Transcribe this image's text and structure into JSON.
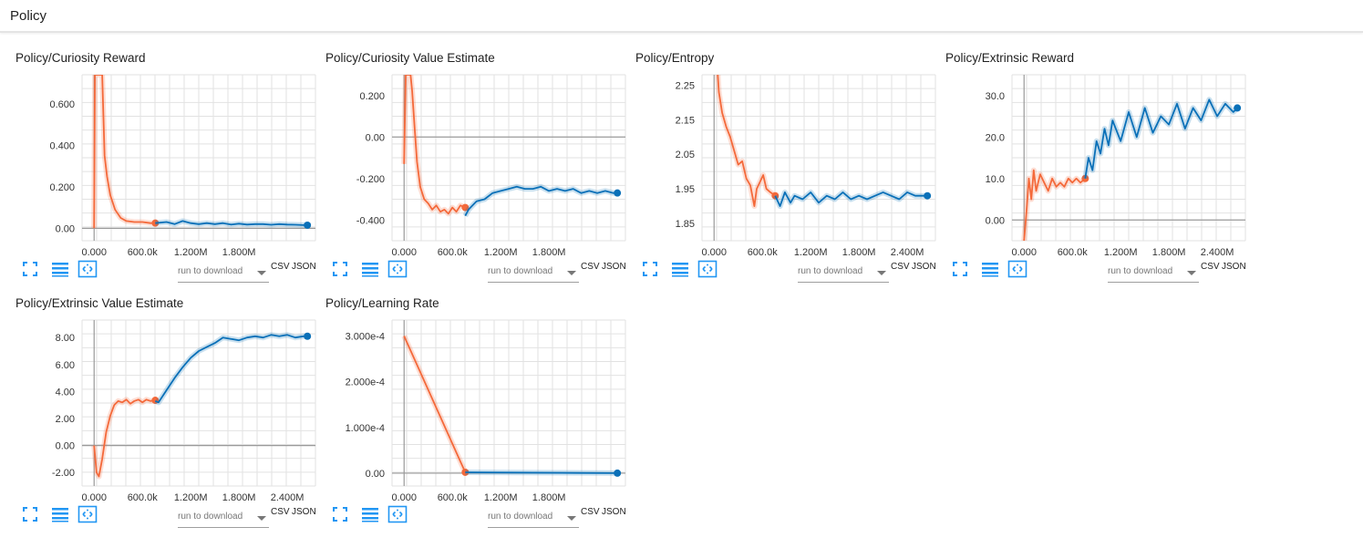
{
  "section": {
    "title": "Policy"
  },
  "toolbar": {
    "run_select_placeholder": "run to download",
    "csv_label": "CSV",
    "json_label": "JSON"
  },
  "icons": {
    "fit": "fit-domain-icon",
    "log": "log-scale-icon",
    "expand": "expand-icon"
  },
  "colors": {
    "run_a": "#f4693a",
    "run_b": "#0a70b8",
    "grid": "#e2e2e2",
    "axis": "#9a9a9a",
    "icon": "#2196f3"
  },
  "chart_data": [
    {
      "title": "Policy/Curiosity Reward",
      "type": "line",
      "xlim": [
        -150000,
        2750000
      ],
      "ylim": [
        -0.06,
        0.74
      ],
      "xticks": [
        0,
        600000,
        1200000,
        1800000
      ],
      "xtick_labels": [
        "0.000",
        "600.0k",
        "1.200M",
        "1.800M"
      ],
      "yticks": [
        0,
        0.2,
        0.4,
        0.6
      ],
      "ytick_labels": [
        "0.00",
        "0.200",
        "0.400",
        "0.600"
      ],
      "series": [
        {
          "x": [
            0,
            10000,
            30000,
            60000,
            100000,
            130000,
            160000,
            200000,
            260000,
            330000,
            400000,
            500000,
            600000,
            700000,
            760000
          ],
          "y": [
            0,
            0.74,
            0.74,
            0.74,
            0.74,
            0.35,
            0.25,
            0.16,
            0.09,
            0.05,
            0.035,
            0.03,
            0.03,
            0.025,
            0.025
          ]
        },
        {
          "x": [
            760000,
            900000,
            1000000,
            1100000,
            1200000,
            1300000,
            1400000,
            1500000,
            1600000,
            1700000,
            1800000,
            1900000,
            2000000,
            2100000,
            2200000,
            2300000,
            2400000,
            2500000,
            2600000,
            2650000
          ],
          "y": [
            0.025,
            0.03,
            0.02,
            0.035,
            0.025,
            0.02,
            0.025,
            0.02,
            0.025,
            0.018,
            0.022,
            0.018,
            0.02,
            0.02,
            0.017,
            0.02,
            0.018,
            0.017,
            0.015,
            0.015
          ]
        }
      ]
    },
    {
      "title": "Policy/Curiosity Value Estimate",
      "type": "line",
      "xlim": [
        -150000,
        2750000
      ],
      "ylim": [
        -0.5,
        0.3
      ],
      "xticks": [
        0,
        600000,
        1200000,
        1800000
      ],
      "xtick_labels": [
        "0.000",
        "600.0k",
        "1.200M",
        "1.800M"
      ],
      "yticks": [
        -0.4,
        -0.2,
        0,
        0.2
      ],
      "ytick_labels": [
        "-0.400",
        "-0.200",
        "0.00",
        "0.200"
      ],
      "series": [
        {
          "x": [
            0,
            20000,
            40000,
            60000,
            80000,
            100000,
            130000,
            160000,
            200000,
            250000,
            300000,
            350000,
            400000,
            450000,
            500000,
            550000,
            600000,
            650000,
            700000,
            760000
          ],
          "y": [
            -0.13,
            0.3,
            0.3,
            0.3,
            0.3,
            0.22,
            0.05,
            -0.12,
            -0.24,
            -0.3,
            -0.32,
            -0.35,
            -0.33,
            -0.36,
            -0.35,
            -0.37,
            -0.34,
            -0.36,
            -0.33,
            -0.34
          ]
        },
        {
          "x": [
            760000,
            800000,
            850000,
            900000,
            1000000,
            1100000,
            1200000,
            1300000,
            1400000,
            1500000,
            1600000,
            1700000,
            1800000,
            1900000,
            2000000,
            2100000,
            2200000,
            2300000,
            2400000,
            2500000,
            2600000,
            2650000
          ],
          "y": [
            -0.38,
            -0.35,
            -0.33,
            -0.31,
            -0.3,
            -0.27,
            -0.26,
            -0.25,
            -0.24,
            -0.25,
            -0.25,
            -0.24,
            -0.26,
            -0.25,
            -0.26,
            -0.25,
            -0.27,
            -0.26,
            -0.27,
            -0.26,
            -0.27,
            -0.27
          ]
        }
      ]
    },
    {
      "title": "Policy/Entropy",
      "type": "line",
      "xlim": [
        -150000,
        2750000
      ],
      "ylim": [
        1.8,
        2.28
      ],
      "xticks": [
        0,
        600000,
        1200000,
        1800000,
        2400000
      ],
      "xtick_labels": [
        "0.000",
        "600.0k",
        "1.200M",
        "1.800M",
        "2.400M"
      ],
      "yticks": [
        1.85,
        1.95,
        2.05,
        2.15,
        2.25
      ],
      "ytick_labels": [
        "1.85",
        "1.95",
        "2.05",
        "2.15",
        "2.25"
      ],
      "series": [
        {
          "x": [
            0,
            40000,
            60000,
            100000,
            150000,
            200000,
            250000,
            300000,
            350000,
            400000,
            450000,
            500000,
            530000,
            570000,
            610000,
            650000,
            700000,
            760000
          ],
          "y": [
            2.3,
            2.3,
            2.23,
            2.17,
            2.13,
            2.1,
            2.06,
            2.02,
            2.03,
            1.98,
            1.96,
            1.9,
            1.95,
            1.97,
            1.99,
            1.95,
            1.94,
            1.93
          ]
        },
        {
          "x": [
            760000,
            820000,
            880000,
            950000,
            1000000,
            1100000,
            1200000,
            1300000,
            1400000,
            1500000,
            1600000,
            1700000,
            1800000,
            1900000,
            2000000,
            2100000,
            2200000,
            2300000,
            2400000,
            2500000,
            2600000,
            2650000
          ],
          "y": [
            1.93,
            1.9,
            1.94,
            1.91,
            1.93,
            1.92,
            1.94,
            1.91,
            1.93,
            1.92,
            1.94,
            1.92,
            1.93,
            1.92,
            1.93,
            1.94,
            1.93,
            1.92,
            1.94,
            1.93,
            1.93,
            1.93
          ]
        }
      ]
    },
    {
      "title": "Policy/Extrinsic Reward",
      "type": "line",
      "xlim": [
        -150000,
        2750000
      ],
      "ylim": [
        -5,
        35
      ],
      "xticks": [
        0,
        600000,
        1200000,
        1800000,
        2400000
      ],
      "xtick_labels": [
        "0.000",
        "600.0k",
        "1.200M",
        "1.800M",
        "2.400M"
      ],
      "yticks": [
        0,
        10,
        20,
        30
      ],
      "ytick_labels": [
        "0.00",
        "10.0",
        "20.0",
        "30.0"
      ],
      "series": [
        {
          "x": [
            0,
            30000,
            60000,
            90000,
            120000,
            150000,
            200000,
            250000,
            300000,
            350000,
            400000,
            450000,
            500000,
            550000,
            600000,
            650000,
            700000,
            760000
          ],
          "y": [
            -5,
            2,
            10,
            5,
            12,
            7,
            11,
            9,
            7,
            10,
            8,
            9,
            8,
            10,
            9,
            10,
            9,
            10
          ]
        },
        {
          "x": [
            760000,
            800000,
            850000,
            900000,
            950000,
            1000000,
            1050000,
            1100000,
            1200000,
            1300000,
            1400000,
            1500000,
            1600000,
            1700000,
            1800000,
            1900000,
            2000000,
            2100000,
            2200000,
            2300000,
            2400000,
            2500000,
            2600000,
            2650000
          ],
          "y": [
            10,
            15,
            12,
            19,
            16,
            22,
            18,
            24,
            19,
            26,
            20,
            27,
            21,
            25,
            23,
            28,
            22,
            27,
            24,
            29,
            25,
            28,
            26,
            27
          ]
        }
      ]
    },
    {
      "title": "Policy/Extrinsic Value Estimate",
      "type": "line",
      "xlim": [
        -150000,
        2750000
      ],
      "ylim": [
        -3,
        9.3
      ],
      "xticks": [
        0,
        600000,
        1200000,
        1800000,
        2400000
      ],
      "xtick_labels": [
        "0.000",
        "600.0k",
        "1.200M",
        "1.800M",
        "2.400M"
      ],
      "yticks": [
        -2,
        0,
        2,
        4,
        6,
        8
      ],
      "ytick_labels": [
        "-2.00",
        "0.00",
        "2.00",
        "4.00",
        "6.00",
        "8.00"
      ],
      "series": [
        {
          "x": [
            0,
            30000,
            60000,
            100000,
            150000,
            200000,
            250000,
            300000,
            350000,
            400000,
            450000,
            500000,
            550000,
            600000,
            650000,
            700000,
            760000
          ],
          "y": [
            0,
            -2,
            -2.3,
            -1,
            1,
            2.2,
            3,
            3.3,
            3.2,
            3.4,
            3.1,
            3.3,
            3.4,
            3.2,
            3.4,
            3.3,
            3.35
          ]
        },
        {
          "x": [
            760000,
            800000,
            900000,
            1000000,
            1100000,
            1200000,
            1300000,
            1400000,
            1500000,
            1600000,
            1700000,
            1800000,
            1900000,
            2000000,
            2100000,
            2200000,
            2300000,
            2400000,
            2500000,
            2600000,
            2650000
          ],
          "y": [
            3.3,
            3.2,
            4.1,
            5.0,
            5.8,
            6.5,
            7.0,
            7.3,
            7.6,
            8.0,
            7.9,
            7.8,
            8.0,
            8.1,
            8.0,
            8.2,
            8.1,
            8.2,
            8.0,
            8.1,
            8.1
          ]
        }
      ]
    },
    {
      "title": "Policy/Learning Rate",
      "type": "line",
      "xlim": [
        -150000,
        2750000
      ],
      "ylim": [
        -2.8e-05,
        0.000335
      ],
      "xticks": [
        0,
        600000,
        1200000,
        1800000
      ],
      "xtick_labels": [
        "0.000",
        "600.0k",
        "1.200M",
        "1.800M"
      ],
      "yticks": [
        0,
        0.0001,
        0.0002,
        0.0003
      ],
      "ytick_labels": [
        "0.00",
        "1.000e-4",
        "2.000e-4",
        "3.000e-4"
      ],
      "series": [
        {
          "x": [
            0,
            760000
          ],
          "y": [
            0.0003,
            2e-06
          ]
        },
        {
          "x": [
            760000,
            2650000
          ],
          "y": [
            2e-06,
            1e-07
          ]
        }
      ]
    }
  ]
}
